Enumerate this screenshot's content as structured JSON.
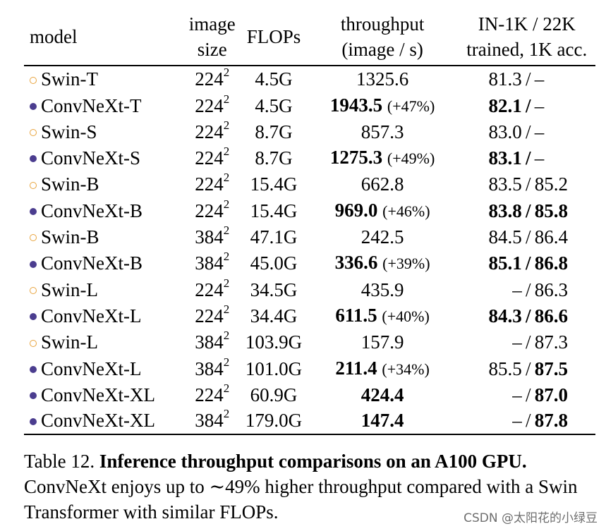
{
  "table": {
    "headers": {
      "model": "model",
      "image_size": [
        "image",
        "size"
      ],
      "flops": "FLOPs",
      "throughput": [
        "throughput",
        "(image / s)"
      ],
      "accuracy": [
        "IN-1K / 22K",
        "trained, 1K acc."
      ]
    },
    "rows": [
      {
        "marker": "open",
        "model": "Swin-T",
        "size": "224",
        "exp": "2",
        "flops": "4.5G",
        "throughput": "1325.6",
        "tp_bold": false,
        "gain": "",
        "acc1k": "81.3",
        "acc1k_bold": false,
        "acc22k": "–",
        "acc22k_bold": false
      },
      {
        "marker": "filled",
        "model": "ConvNeXt-T",
        "size": "224",
        "exp": "2",
        "flops": "4.5G",
        "throughput": "1943.5",
        "tp_bold": true,
        "gain": "(+47%)",
        "acc1k": "82.1",
        "acc1k_bold": true,
        "acc22k": "–",
        "acc22k_bold": false
      },
      {
        "marker": "open",
        "model": "Swin-S",
        "size": "224",
        "exp": "2",
        "flops": "8.7G",
        "throughput": "857.3",
        "tp_bold": false,
        "gain": "",
        "acc1k": "83.0",
        "acc1k_bold": false,
        "acc22k": "–",
        "acc22k_bold": false
      },
      {
        "marker": "filled",
        "model": "ConvNeXt-S",
        "size": "224",
        "exp": "2",
        "flops": "8.7G",
        "throughput": "1275.3",
        "tp_bold": true,
        "gain": "(+49%)",
        "acc1k": "83.1",
        "acc1k_bold": true,
        "acc22k": "–",
        "acc22k_bold": false
      },
      {
        "marker": "open",
        "model": "Swin-B",
        "size": "224",
        "exp": "2",
        "flops": "15.4G",
        "throughput": "662.8",
        "tp_bold": false,
        "gain": "",
        "acc1k": "83.5",
        "acc1k_bold": false,
        "acc22k": "85.2",
        "acc22k_bold": false
      },
      {
        "marker": "filled",
        "model": "ConvNeXt-B",
        "size": "224",
        "exp": "2",
        "flops": "15.4G",
        "throughput": "969.0",
        "tp_bold": true,
        "gain": "(+46%)",
        "acc1k": "83.8",
        "acc1k_bold": true,
        "acc22k": "85.8",
        "acc22k_bold": true
      },
      {
        "marker": "open",
        "model": "Swin-B",
        "size": "384",
        "exp": "2",
        "flops": "47.1G",
        "throughput": "242.5",
        "tp_bold": false,
        "gain": "",
        "acc1k": "84.5",
        "acc1k_bold": false,
        "acc22k": "86.4",
        "acc22k_bold": false
      },
      {
        "marker": "filled",
        "model": "ConvNeXt-B",
        "size": "384",
        "exp": "2",
        "flops": "45.0G",
        "throughput": "336.6",
        "tp_bold": true,
        "gain": "(+39%)",
        "acc1k": "85.1",
        "acc1k_bold": true,
        "acc22k": "86.8",
        "acc22k_bold": true
      },
      {
        "marker": "open",
        "model": "Swin-L",
        "size": "224",
        "exp": "2",
        "flops": "34.5G",
        "throughput": "435.9",
        "tp_bold": false,
        "gain": "",
        "acc1k": "–",
        "acc1k_bold": false,
        "acc22k": "86.3",
        "acc22k_bold": false
      },
      {
        "marker": "filled",
        "model": "ConvNeXt-L",
        "size": "224",
        "exp": "2",
        "flops": "34.4G",
        "throughput": "611.5",
        "tp_bold": true,
        "gain": "(+40%)",
        "acc1k": "84.3",
        "acc1k_bold": true,
        "acc22k": "86.6",
        "acc22k_bold": true
      },
      {
        "marker": "open",
        "model": "Swin-L",
        "size": "384",
        "exp": "2",
        "flops": "103.9G",
        "throughput": "157.9",
        "tp_bold": false,
        "gain": "",
        "acc1k": "–",
        "acc1k_bold": false,
        "acc22k": "87.3",
        "acc22k_bold": false
      },
      {
        "marker": "filled",
        "model": "ConvNeXt-L",
        "size": "384",
        "exp": "2",
        "flops": "101.0G",
        "throughput": "211.4",
        "tp_bold": true,
        "gain": "(+34%)",
        "acc1k": "85.5",
        "acc1k_bold": false,
        "acc22k": "87.5",
        "acc22k_bold": true
      },
      {
        "marker": "filled",
        "model": "ConvNeXt-XL",
        "size": "224",
        "exp": "2",
        "flops": "60.9G",
        "throughput": "424.4",
        "tp_bold": true,
        "gain": "",
        "acc1k": "–",
        "acc1k_bold": false,
        "acc22k": "87.0",
        "acc22k_bold": true
      },
      {
        "marker": "filled",
        "model": "ConvNeXt-XL",
        "size": "384",
        "exp": "2",
        "flops": "179.0G",
        "throughput": "147.4",
        "tp_bold": true,
        "gain": "",
        "acc1k": "–",
        "acc1k_bold": false,
        "acc22k": "87.8",
        "acc22k_bold": true
      }
    ],
    "acc_separator": "/",
    "marker_colors": {
      "open": "#e8a33d",
      "filled": "#4b3d8f"
    }
  },
  "caption": {
    "label": "Table 12.",
    "title": "Inference throughput comparisons on an A100 GPU.",
    "body": "ConvNeXt enjoys up to ∼49% higher throughput compared with a Swin Transformer with similar FLOPs."
  },
  "watermark": "CSDN @太阳花的小绿豆"
}
